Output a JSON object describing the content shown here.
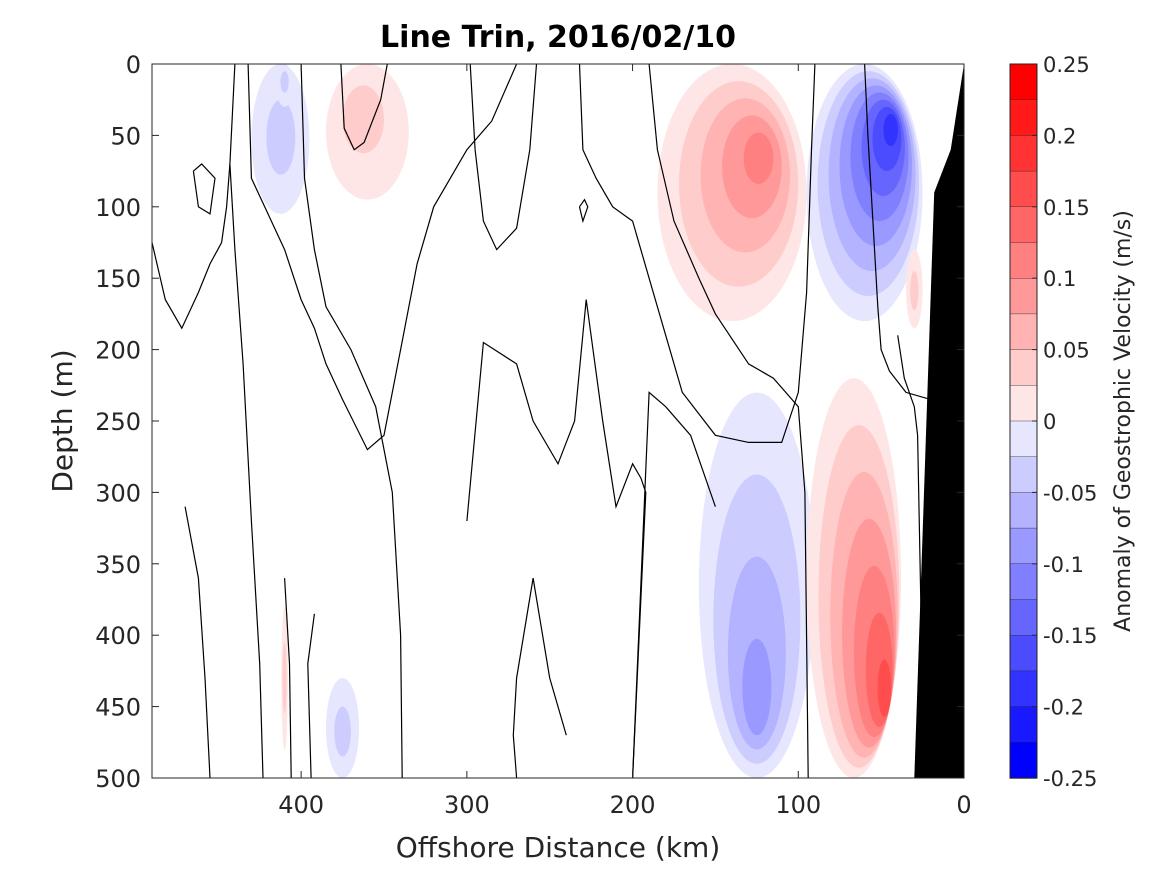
{
  "chart_data": {
    "type": "heatmap",
    "title": "Line Trin, 2016/02/10",
    "xlabel": "Offshore Distance (km)",
    "ylabel": "Depth (m)",
    "xlim": [
      490,
      0
    ],
    "ylim": [
      0,
      500
    ],
    "x_ticks": [
      400,
      300,
      200,
      100,
      0
    ],
    "y_ticks": [
      0,
      50,
      100,
      150,
      200,
      250,
      300,
      350,
      400,
      450,
      500
    ],
    "x_reversed": true,
    "y_reversed": true,
    "grid": false,
    "colorbar": {
      "label": "Anomaly of Geostrophic Velocity (m/s)",
      "range": [
        -0.25,
        0.25
      ],
      "step": 0.025,
      "ticks": [
        "0.25",
        "0.2",
        "0.15",
        "0.1",
        "0.05",
        "0",
        "-0.05",
        "-0.1",
        "-0.15",
        "-0.2",
        "-0.25"
      ],
      "positive_color": "#ff0000",
      "negative_color": "#0000ff"
    },
    "features": [
      {
        "kind": "negative_anomaly",
        "peak_value": -0.2,
        "x_range_km": [
          25,
          95
        ],
        "depth_range_m": [
          0,
          180
        ],
        "peak_x_km": 42,
        "peak_depth_m": 40
      },
      {
        "kind": "positive_anomaly",
        "peak_value": 0.125,
        "x_range_km": [
          95,
          185
        ],
        "depth_range_m": [
          0,
          180
        ],
        "peak_x_km": 120,
        "peak_depth_m": 60
      },
      {
        "kind": "negative_anomaly",
        "peak_value": -0.1,
        "x_range_km": [
          90,
          160
        ],
        "depth_range_m": [
          230,
          500
        ],
        "peak_x_km": 125,
        "peak_depth_m": 460
      },
      {
        "kind": "positive_anomaly",
        "peak_value": 0.175,
        "x_range_km": [
          38,
          95
        ],
        "depth_range_m": [
          220,
          500
        ],
        "peak_x_km": 45,
        "peak_depth_m": 450
      },
      {
        "kind": "negative_anomaly",
        "peak_value": -0.05,
        "x_range_km": [
          395,
          430
        ],
        "depth_range_m": [
          0,
          105
        ],
        "peak_x_km": 412,
        "peak_depth_m": 50
      },
      {
        "kind": "positive_anomaly",
        "peak_value": 0.05,
        "x_range_km": [
          335,
          385
        ],
        "depth_range_m": [
          0,
          95
        ],
        "peak_x_km": 365,
        "peak_depth_m": 30
      },
      {
        "kind": "negative_anomaly",
        "peak_value": -0.05,
        "x_range_km": [
          405,
          415
        ],
        "depth_range_m": [
          0,
          30
        ],
        "peak_x_km": 410,
        "peak_depth_m": 10
      },
      {
        "kind": "positive_anomaly",
        "peak_value": 0.05,
        "x_range_km": [
          408,
          412
        ],
        "depth_range_m": [
          380,
          480
        ],
        "peak_x_km": 410,
        "peak_depth_m": 430
      },
      {
        "kind": "negative_anomaly",
        "peak_value": -0.05,
        "x_range_km": [
          365,
          385
        ],
        "depth_range_m": [
          430,
          500
        ],
        "peak_x_km": 375,
        "peak_depth_m": 470
      },
      {
        "kind": "positive_anomaly",
        "peak_value": 0.05,
        "x_range_km": [
          25,
          35
        ],
        "depth_range_m": [
          130,
          185
        ],
        "peak_x_km": 30,
        "peak_depth_m": 160
      }
    ],
    "bathymetry": {
      "fill": "#000000",
      "points": [
        [
          0,
          0
        ],
        [
          8,
          60
        ],
        [
          18,
          90
        ],
        [
          30,
          500
        ],
        [
          0,
          500
        ]
      ]
    }
  }
}
